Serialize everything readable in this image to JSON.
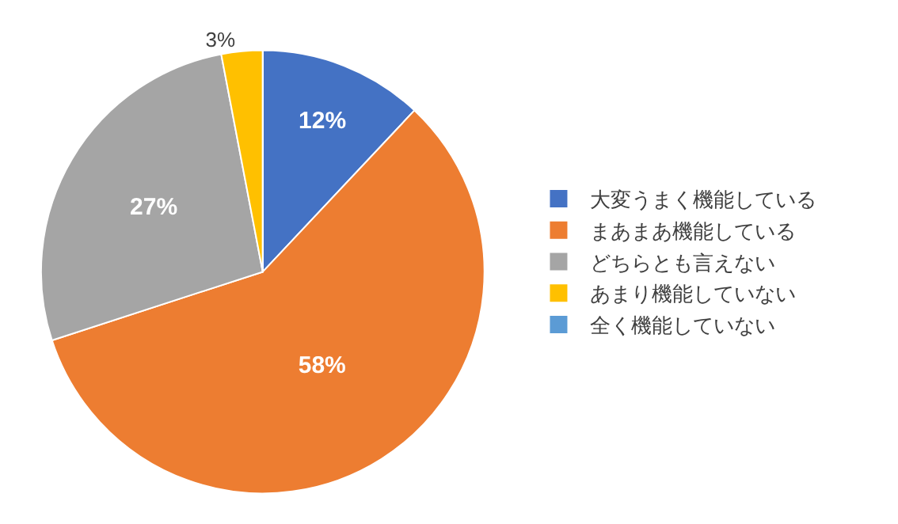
{
  "chart_data": {
    "type": "pie",
    "categories": [
      "大変うまく機能している",
      "まあまあ機能している",
      "どちらとも言えない",
      "あまり機能していない",
      "全く機能していない"
    ],
    "values": [
      12,
      58,
      27,
      3,
      0
    ],
    "colors": [
      "#4472c4",
      "#ed7d31",
      "#a5a5a5",
      "#ffc000",
      "#5b9bd5"
    ],
    "value_labels": [
      "12%",
      "58%",
      "27%",
      "3%",
      null
    ],
    "legend": "right"
  }
}
